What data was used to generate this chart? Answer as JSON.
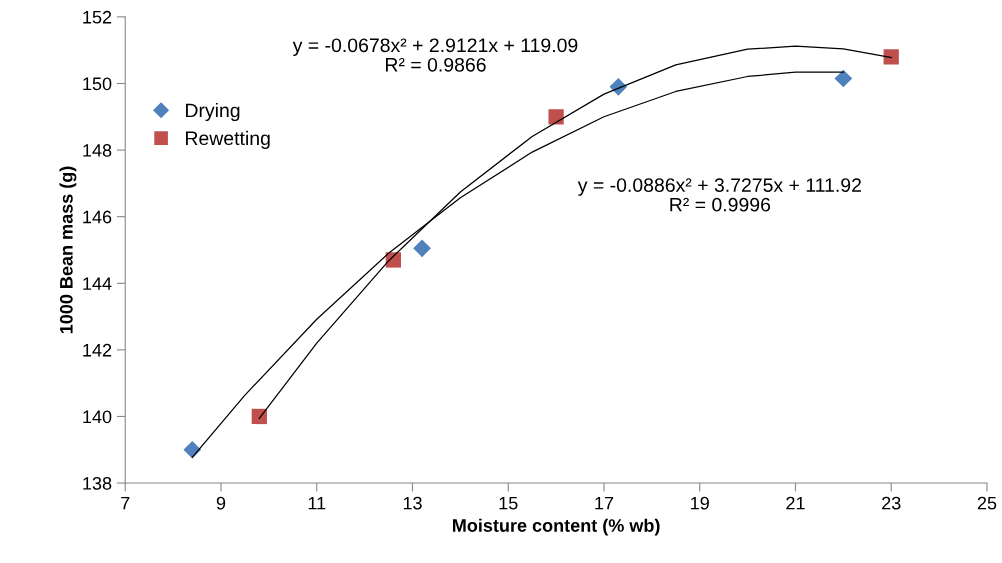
{
  "chart_data": {
    "type": "scatter",
    "xlabel": "Moisture content (% wb)",
    "ylabel": "1000 Bean mass (g)",
    "xlim": [
      7,
      25
    ],
    "xticks": [
      7,
      9,
      11,
      13,
      15,
      17,
      19,
      21,
      23,
      25
    ],
    "ylim": [
      138,
      152
    ],
    "yticks": [
      138,
      140,
      142,
      144,
      146,
      148,
      150,
      152
    ],
    "grid": false,
    "legend": "top left",
    "series": [
      {
        "name": "Drying",
        "color": "#4f81bd",
        "marker": "diamond",
        "x": [
          8.4,
          13.2,
          17.3,
          22.0
        ],
        "values": [
          139.0,
          145.05,
          149.9,
          150.15
        ]
      },
      {
        "name": "Rewetting",
        "color": "#c0504d",
        "marker": "square",
        "x": [
          9.8,
          12.6,
          16.0,
          23.0
        ],
        "values": [
          140.0,
          144.7,
          149.0,
          150.8
        ]
      },
      {
        "type": "line",
        "color": "#000000",
        "marker": "none",
        "x": [
          8.4,
          9.5,
          11,
          12.5,
          14,
          15.5,
          17,
          18.5,
          20,
          21,
          22
        ],
        "values": [
          138.77,
          140.64,
          142.92,
          144.9,
          146.57,
          147.94,
          149.0,
          149.76,
          150.21,
          150.34,
          150.34
        ]
      },
      {
        "type": "line",
        "color": "#000000",
        "marker": "none",
        "x": [
          9.8,
          11,
          12.5,
          14,
          15.5,
          17,
          18.5,
          20,
          21,
          22,
          23
        ],
        "values": [
          139.94,
          142.2,
          144.67,
          146.74,
          148.41,
          149.68,
          150.56,
          151.03,
          151.12,
          151.04,
          150.78
        ]
      }
    ],
    "annotations": [
      "y = -0.0678x² + 2.9121x + 119.09\nR² = 0.9866",
      "y = -0.0886x² + 3.7275x + 111.92\nR² = 0.9996"
    ]
  }
}
